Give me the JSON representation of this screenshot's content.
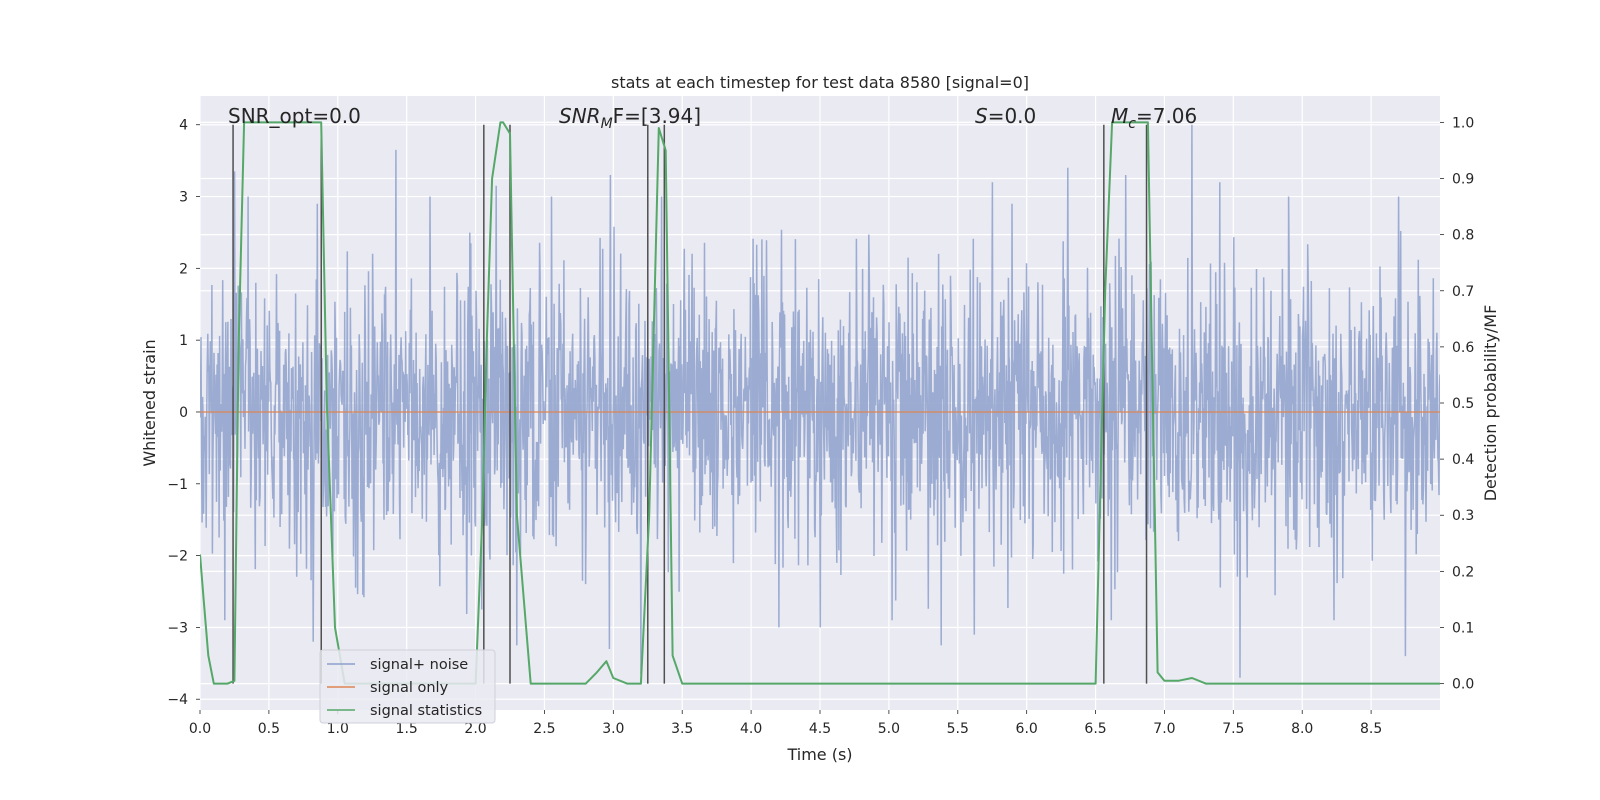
{
  "chart_data": {
    "type": "line",
    "title": "stats at each timestep for test data 8580 [signal=0]",
    "xlabel": "Time (s)",
    "ylabel_left": "Whitened strain",
    "ylabel_right": "Detection probability/MF",
    "xlim": [
      0.0,
      9.0
    ],
    "ylim_left": [
      -4.15,
      4.4
    ],
    "ylim_right": [
      -0.047,
      1.047
    ],
    "x_ticks": [
      "0.0",
      "0.5",
      "1.0",
      "1.5",
      "2.0",
      "2.5",
      "3.0",
      "3.5",
      "4.0",
      "4.5",
      "5.0",
      "5.5",
      "6.0",
      "6.5",
      "7.0",
      "7.5",
      "8.0",
      "8.5"
    ],
    "y_ticks_left": [
      "4",
      "3",
      "2",
      "1",
      "0",
      "−1",
      "−2",
      "−3",
      "−4"
    ],
    "y_ticks_right": [
      "1.0",
      "0.9",
      "0.8",
      "0.7",
      "0.6",
      "0.5",
      "0.4",
      "0.3",
      "0.2",
      "0.1",
      "0.0"
    ],
    "grid": true,
    "legend_position": "lower-left",
    "annotations": {
      "snr_opt": "SNR_opt=0.0",
      "snr_mf_prefix": "SNR",
      "snr_mf_sub": "M",
      "snr_mf_suffix": "F=[3.94]",
      "s_sym": "S",
      "s_val": "=0.0",
      "mc_sym": "M",
      "mc_sub": "c",
      "mc_val": "=7.06"
    },
    "series": [
      {
        "name": "signal+ noise",
        "color": "#8da0cb",
        "description": "whitened strain noise fluctuating about 0, envelope roughly ±2, peaks ~±3.5",
        "envelope_spikes": [
          [
            0.25,
            3.35
          ],
          [
            0.35,
            3.0
          ],
          [
            0.85,
            2.9
          ],
          [
            1.42,
            3.65
          ],
          [
            1.67,
            3.0
          ],
          [
            2.15,
            3.15
          ],
          [
            2.55,
            3.0
          ],
          [
            2.98,
            3.3
          ],
          [
            3.35,
            3.0
          ],
          [
            4.5,
            3.6
          ],
          [
            5.62,
            3.5
          ],
          [
            5.75,
            3.2
          ],
          [
            6.3,
            3.4
          ],
          [
            6.72,
            3.3
          ],
          [
            7.2,
            4.0
          ],
          [
            7.4,
            3.2
          ],
          [
            7.9,
            3.0
          ],
          [
            8.7,
            3.0
          ],
          [
            0.82,
            -3.2
          ],
          [
            2.3,
            -3.25
          ],
          [
            2.97,
            -3.3
          ],
          [
            3.2,
            -3.65
          ],
          [
            4.2,
            -3.0
          ],
          [
            4.5,
            -3.0
          ],
          [
            5.38,
            -3.25
          ],
          [
            5.62,
            -3.1
          ],
          [
            7.55,
            -3.7
          ],
          [
            8.75,
            -3.4
          ]
        ]
      },
      {
        "name": "signal only",
        "color": "#dd8452",
        "x": [
          0.0,
          9.0
        ],
        "y": [
          0.0,
          0.0
        ]
      },
      {
        "name": "signal statistics",
        "color": "#55a868",
        "axis": "right",
        "x": [
          0.0,
          0.03,
          0.06,
          0.1,
          0.2,
          0.25,
          0.28,
          0.32,
          0.4,
          0.6,
          0.88,
          0.92,
          0.98,
          1.05,
          1.2,
          1.5,
          1.8,
          2.0,
          2.05,
          2.08,
          2.12,
          2.18,
          2.2,
          2.25,
          2.3,
          2.4,
          2.6,
          2.8,
          2.88,
          2.95,
          3.0,
          3.1,
          3.2,
          3.26,
          3.33,
          3.38,
          3.43,
          3.5,
          4.0,
          5.0,
          6.0,
          6.5,
          6.57,
          6.62,
          6.7,
          6.88,
          6.95,
          7.0,
          7.1,
          7.2,
          7.3,
          8.0,
          9.0
        ],
        "y": [
          0.23,
          0.14,
          0.05,
          0.0,
          0.0,
          0.005,
          0.6,
          1.0,
          1.0,
          1.0,
          1.0,
          0.5,
          0.1,
          0.0,
          0.0,
          0.0,
          0.0,
          0.0,
          0.3,
          0.6,
          0.9,
          1.0,
          1.0,
          0.98,
          0.3,
          0.0,
          0.0,
          0.0,
          0.02,
          0.04,
          0.01,
          0.0,
          0.0,
          0.3,
          0.99,
          0.95,
          0.05,
          0.0,
          0.0,
          0.0,
          0.0,
          0.0,
          0.7,
          1.0,
          1.0,
          1.0,
          0.02,
          0.005,
          0.005,
          0.01,
          0.0,
          0.0,
          0.0
        ]
      }
    ],
    "vertical_markers_x": [
      0.24,
      0.88,
      2.06,
      2.25,
      3.25,
      3.37,
      6.56,
      6.87
    ],
    "vertical_markers_color": "#505050"
  }
}
